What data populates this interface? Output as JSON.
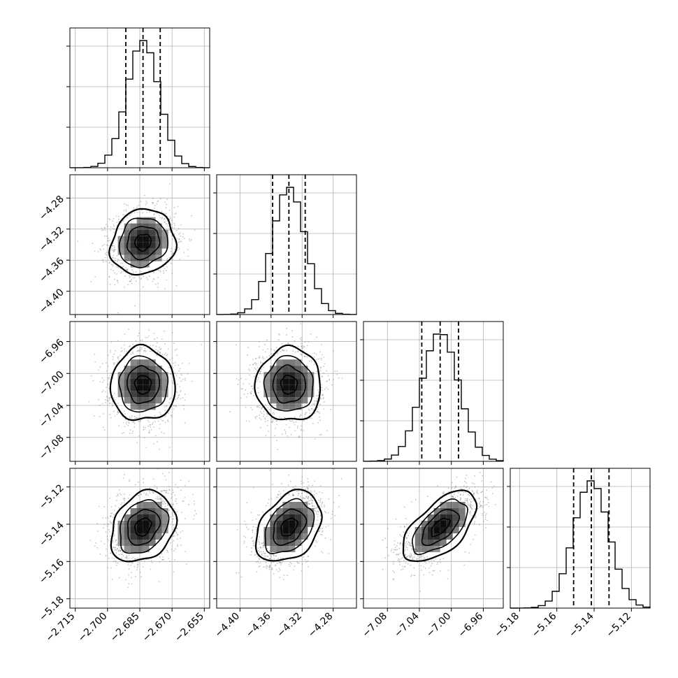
{
  "chart_data": {
    "type": "corner",
    "grid": true,
    "parameters": [
      {
        "range": [
          -2.7175,
          -2.6525
        ],
        "ticks": [
          -2.715,
          -2.7,
          -2.685,
          -2.67,
          -2.655
        ],
        "tick_labels": [
          "−2.715",
          "−2.700",
          "−2.685",
          "−2.670",
          "−2.655"
        ],
        "quantiles": [
          -2.6915,
          -2.6835,
          -2.6755
        ],
        "mean": -2.6835,
        "std": 0.0075
      },
      {
        "range": [
          -4.43,
          -4.25
        ],
        "ticks": [
          -4.4,
          -4.36,
          -4.32,
          -4.28
        ],
        "tick_labels": [
          "−4.40",
          "−4.36",
          "−4.32",
          "−4.28"
        ],
        "quantiles": [
          -4.358,
          -4.337,
          -4.316
        ],
        "mean": -4.337,
        "std": 0.021
      },
      {
        "range": [
          -7.11,
          -6.935
        ],
        "ticks": [
          -7.08,
          -7.04,
          -7.0,
          -6.96
        ],
        "tick_labels": [
          "−7.08",
          "−7.04",
          "−7.00",
          "−6.96"
        ],
        "quantiles": [
          -7.037,
          -7.014,
          -6.991
        ],
        "mean": -7.014,
        "std": 0.023
      },
      {
        "range": [
          -5.185,
          -5.11
        ],
        "ticks": [
          -5.18,
          -5.16,
          -5.14,
          -5.12
        ],
        "tick_labels": [
          "−5.18",
          "−5.16",
          "−5.14",
          "−5.12"
        ],
        "quantiles": [
          -5.151,
          -5.1415,
          -5.132
        ],
        "mean": -5.1415,
        "std": 0.0095
      }
    ],
    "correlations": [
      {
        "row": 1,
        "col": 0,
        "rho": 0.1
      },
      {
        "row": 2,
        "col": 0,
        "rho": 0.0
      },
      {
        "row": 2,
        "col": 1,
        "rho": 0.0
      },
      {
        "row": 3,
        "col": 0,
        "rho": 0.25
      },
      {
        "row": 3,
        "col": 1,
        "rho": 0.35
      },
      {
        "row": 3,
        "col": 2,
        "rho": 0.6
      }
    ],
    "histogram_bins": 20,
    "contour_levels_sigma": [
      0.5,
      1.0,
      1.5,
      2.0
    ],
    "colors": {
      "line": "#000000",
      "hist2d_density": "#000000",
      "scatter_points": "#7f7f7f",
      "grid": "#b0b0b0",
      "frame": "#000000"
    }
  }
}
